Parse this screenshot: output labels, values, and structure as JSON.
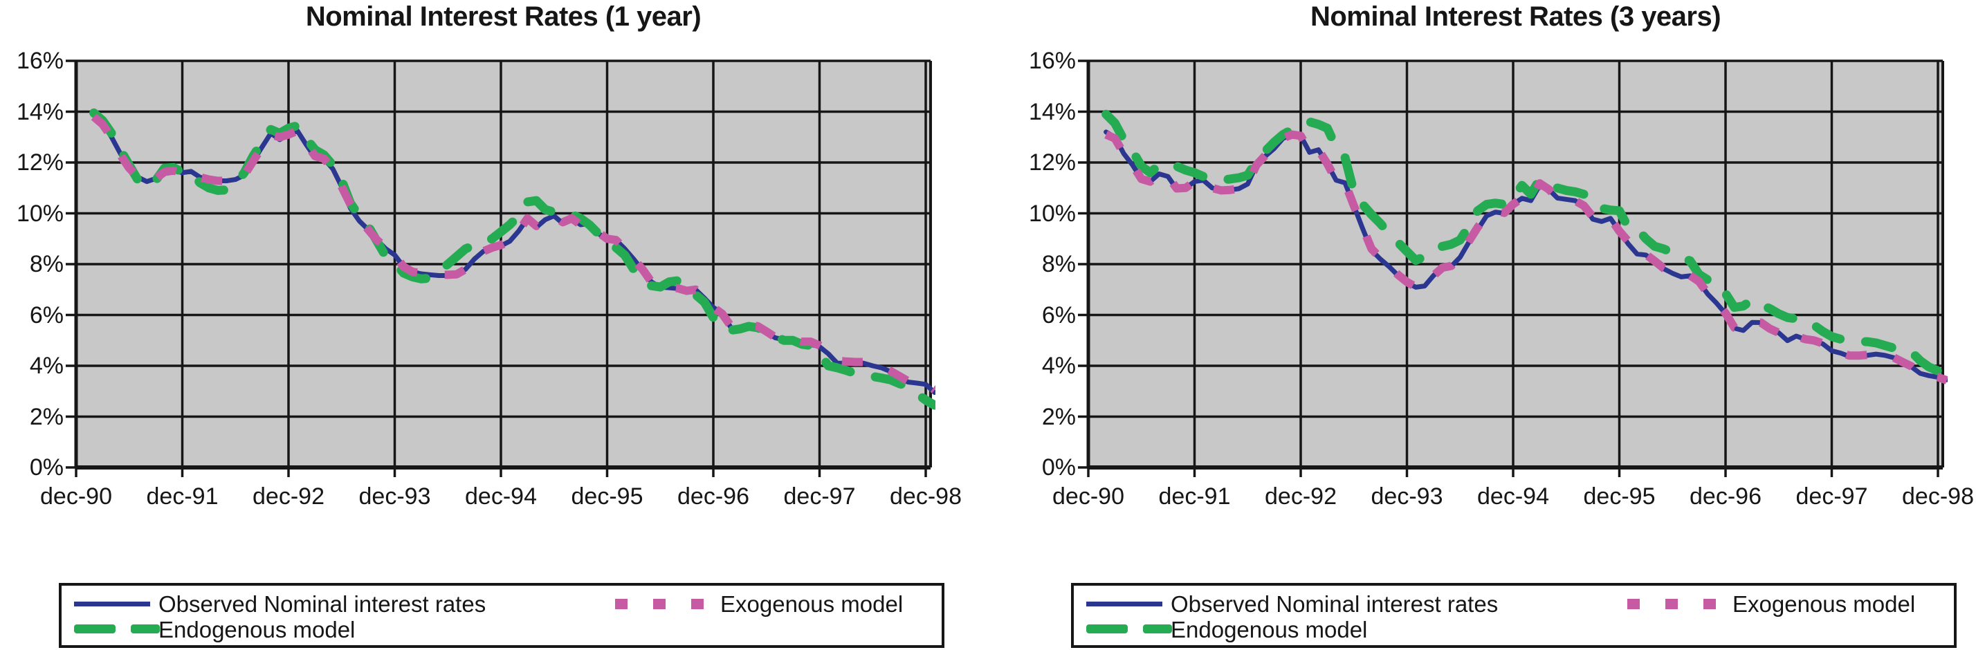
{
  "page": {
    "background_color": "#FFFFFF"
  },
  "colors": {
    "observed": "#2B3690",
    "exogenous": "#C65BA4",
    "endogenous": "#25AC52",
    "plot_background": "#C8C8C8",
    "gridline": "#161616",
    "text": "#161616"
  },
  "legend": {
    "observed_label": "Observed Nominal interest rates",
    "exogenous_label": "Exogenous model",
    "endogenous_label": "Endogenous model"
  },
  "chart_data": [
    {
      "type": "line",
      "title": "Nominal Interest Rates (1 year)",
      "xlabel": "",
      "ylabel": "",
      "ylim": [
        0,
        16
      ],
      "y_tick_step": 2,
      "y_tick_labels": [
        "16%",
        "14%",
        "12%",
        "10%",
        "8%",
        "6%",
        "4%",
        "2%",
        "0%"
      ],
      "x_tick_labels": [
        "dec-90",
        "dec-91",
        "dec-92",
        "dec-93",
        "dec-94",
        "dec-95",
        "dec-96",
        "dec-97",
        "dec-98"
      ],
      "x_unit": "monthly",
      "x_start_month_offset": 2,
      "grid": "on",
      "legend_position": "below",
      "series": [
        {
          "name": "Observed Nominal interest rates",
          "color_key": "observed",
          "style": "solid",
          "values": [
            13.87,
            13.55,
            13.0,
            12.35,
            11.78,
            11.42,
            11.25,
            11.37,
            11.63,
            11.68,
            11.6,
            11.65,
            11.42,
            11.33,
            11.28,
            11.28,
            11.33,
            11.5,
            12.05,
            12.6,
            13.15,
            12.9,
            13.1,
            13.25,
            12.7,
            12.2,
            12.15,
            11.75,
            11.05,
            10.2,
            9.7,
            9.36,
            8.95,
            8.6,
            8.36,
            7.9,
            7.7,
            7.62,
            7.58,
            7.55,
            7.55,
            7.58,
            7.8,
            8.2,
            8.5,
            8.65,
            8.72,
            8.9,
            9.3,
            9.8,
            9.45,
            9.75,
            9.9,
            9.6,
            9.8,
            9.55,
            9.6,
            9.2,
            9.0,
            8.95,
            8.6,
            8.2,
            7.76,
            7.3,
            7.1,
            7.07,
            7.04,
            6.93,
            7.0,
            6.66,
            6.3,
            6.05,
            5.5,
            5.45,
            5.6,
            5.56,
            5.32,
            5.1,
            5.03,
            5.03,
            4.89,
            4.84,
            4.75,
            4.47,
            4.1,
            4.1,
            4.12,
            4.1,
            4.0,
            3.92,
            3.78,
            3.55,
            3.36,
            3.32,
            3.27,
            2.95
          ]
        },
        {
          "name": "Endogenous model",
          "color_key": "endogenous",
          "style": "long-dash",
          "values": [
            13.95,
            13.65,
            13.15,
            12.5,
            11.9,
            11.3,
            11.05,
            11.3,
            11.78,
            11.8,
            11.62,
            11.6,
            11.2,
            11.0,
            10.9,
            10.92,
            11.15,
            11.6,
            12.25,
            12.8,
            13.3,
            13.15,
            13.35,
            13.45,
            12.95,
            12.5,
            12.3,
            11.9,
            11.3,
            10.4,
            9.9,
            9.5,
            8.9,
            8.3,
            8.05,
            7.65,
            7.5,
            7.42,
            7.45,
            7.7,
            8.0,
            8.3,
            8.6,
            8.75,
            8.85,
            9.0,
            9.27,
            9.55,
            9.9,
            10.45,
            10.5,
            10.15,
            10.05,
            10.1,
            9.95,
            9.8,
            9.55,
            9.2,
            9.0,
            8.65,
            8.35,
            7.8,
            7.35,
            7.15,
            7.1,
            7.3,
            7.35,
            7.1,
            6.8,
            6.5,
            5.9,
            5.45,
            5.4,
            5.45,
            5.55,
            5.5,
            5.35,
            5.15,
            5.0,
            5.0,
            4.85,
            4.8,
            4.5,
            4.0,
            3.92,
            3.82,
            3.7,
            3.6,
            3.58,
            3.52,
            3.45,
            3.3,
            3.18,
            2.9,
            2.65,
            2.45
          ]
        },
        {
          "name": "Exogenous model",
          "color_key": "exogenous",
          "style": "short-dash",
          "values": [
            13.8,
            13.5,
            13.0,
            12.3,
            11.78,
            11.42,
            11.25,
            11.37,
            11.63,
            11.68,
            11.6,
            11.65,
            11.42,
            11.33,
            11.28,
            11.28,
            11.33,
            11.5,
            12.05,
            12.6,
            13.1,
            13.0,
            13.1,
            13.25,
            12.75,
            12.25,
            12.15,
            11.75,
            11.05,
            10.35,
            9.8,
            9.36,
            8.95,
            8.65,
            8.36,
            7.9,
            7.7,
            7.65,
            7.6,
            7.58,
            7.58,
            7.6,
            7.8,
            8.2,
            8.5,
            8.65,
            8.75,
            8.9,
            9.3,
            9.8,
            9.5,
            9.75,
            9.9,
            9.65,
            9.8,
            9.55,
            9.6,
            9.25,
            9.0,
            8.95,
            8.6,
            8.2,
            7.8,
            7.3,
            7.12,
            7.08,
            7.05,
            6.95,
            7.0,
            6.7,
            6.3,
            6.05,
            5.55,
            5.5,
            5.6,
            5.56,
            5.35,
            5.12,
            5.05,
            5.05,
            4.95,
            4.95,
            4.8,
            4.6,
            4.2,
            4.17,
            4.15,
            4.15,
            4.05,
            3.95,
            3.8,
            3.6,
            3.4,
            3.35,
            3.3,
            3.05
          ]
        }
      ]
    },
    {
      "type": "line",
      "title": "Nominal Interest Rates (3 years)",
      "xlabel": "",
      "ylabel": "",
      "ylim": [
        0,
        16
      ],
      "y_tick_step": 2,
      "y_tick_labels": [
        "16%",
        "14%",
        "12%",
        "10%",
        "8%",
        "6%",
        "4%",
        "2%",
        "0%"
      ],
      "x_tick_labels": [
        "dec-90",
        "dec-91",
        "dec-92",
        "dec-93",
        "dec-94",
        "dec-95",
        "dec-96",
        "dec-97",
        "dec-98"
      ],
      "x_unit": "monthly",
      "x_start_month_offset": 2,
      "grid": "on",
      "legend_position": "below",
      "series": [
        {
          "name": "Observed Nominal interest rates",
          "color_key": "observed",
          "style": "solid",
          "values": [
            13.2,
            13.0,
            12.35,
            11.9,
            11.35,
            11.25,
            11.55,
            11.45,
            10.95,
            11.0,
            11.25,
            11.3,
            11.0,
            10.9,
            10.92,
            10.97,
            11.15,
            11.9,
            12.25,
            12.55,
            12.95,
            13.1,
            13.05,
            12.4,
            12.5,
            11.95,
            11.3,
            11.2,
            10.3,
            9.4,
            8.55,
            8.2,
            7.9,
            7.55,
            7.27,
            7.09,
            7.14,
            7.55,
            7.86,
            7.91,
            8.27,
            8.86,
            9.36,
            9.9,
            10.05,
            10.0,
            10.36,
            10.59,
            10.5,
            11.1,
            10.95,
            10.6,
            10.55,
            10.5,
            10.3,
            9.77,
            9.68,
            9.8,
            9.3,
            8.8,
            8.4,
            8.36,
            8.1,
            7.82,
            7.64,
            7.5,
            7.54,
            7.3,
            6.82,
            6.46,
            6.05,
            5.48,
            5.39,
            5.71,
            5.7,
            5.44,
            5.3,
            4.99,
            5.17,
            5.04,
            4.99,
            4.86,
            4.59,
            4.5,
            4.37,
            4.37,
            4.41,
            4.46,
            4.41,
            4.32,
            4.14,
            3.96,
            3.7,
            3.61,
            3.55,
            3.45
          ]
        },
        {
          "name": "Endogenous model",
          "color_key": "endogenous",
          "style": "long-dash",
          "values": [
            13.9,
            13.55,
            12.9,
            12.45,
            11.85,
            11.6,
            11.9,
            11.95,
            11.85,
            11.7,
            11.6,
            11.45,
            11.35,
            11.3,
            11.35,
            11.4,
            11.5,
            12.05,
            12.45,
            12.8,
            13.1,
            13.3,
            13.5,
            13.6,
            13.5,
            13.35,
            12.6,
            12.2,
            10.85,
            10.35,
            9.95,
            9.6,
            9.2,
            8.85,
            8.5,
            8.15,
            8.3,
            8.55,
            8.7,
            8.78,
            8.95,
            9.5,
            10.1,
            10.35,
            10.4,
            10.35,
            10.62,
            11.1,
            10.75,
            11.33,
            11.15,
            11.0,
            10.9,
            10.85,
            10.75,
            10.45,
            10.2,
            10.13,
            10.1,
            9.45,
            9.4,
            9.0,
            8.7,
            8.6,
            8.45,
            8.25,
            8.13,
            7.6,
            7.38,
            7.25,
            6.85,
            6.3,
            6.35,
            6.6,
            6.4,
            6.25,
            6.05,
            5.9,
            5.85,
            5.8,
            5.6,
            5.35,
            5.15,
            5.05,
            5.0,
            4.95,
            4.95,
            4.9,
            4.8,
            4.7,
            4.62,
            4.55,
            4.2,
            3.95,
            3.8,
            3.75
          ]
        },
        {
          "name": "Exogenous model",
          "color_key": "exogenous",
          "style": "short-dash",
          "values": [
            13.1,
            12.95,
            12.35,
            11.9,
            11.35,
            11.25,
            11.55,
            11.45,
            10.98,
            11.0,
            11.25,
            11.3,
            11.0,
            10.9,
            10.92,
            10.97,
            11.15,
            11.9,
            12.28,
            12.58,
            12.95,
            13.1,
            13.05,
            12.42,
            12.5,
            11.95,
            11.3,
            11.2,
            10.3,
            9.45,
            8.6,
            8.25,
            7.92,
            7.58,
            7.3,
            7.1,
            7.15,
            7.55,
            7.86,
            7.93,
            8.3,
            8.9,
            9.45,
            9.9,
            10.1,
            10.02,
            10.36,
            10.6,
            10.52,
            11.18,
            10.95,
            10.62,
            10.57,
            10.5,
            10.3,
            9.86,
            9.7,
            9.8,
            9.3,
            8.9,
            8.42,
            8.38,
            8.12,
            7.84,
            7.66,
            7.52,
            7.55,
            7.32,
            6.84,
            6.48,
            6.07,
            5.5,
            5.45,
            5.71,
            5.7,
            5.46,
            5.3,
            5.0,
            5.17,
            5.05,
            5.0,
            4.88,
            4.65,
            4.52,
            4.4,
            4.4,
            4.43,
            4.47,
            4.42,
            4.33,
            4.15,
            3.98,
            3.67,
            3.62,
            3.55,
            3.43
          ]
        }
      ]
    }
  ]
}
